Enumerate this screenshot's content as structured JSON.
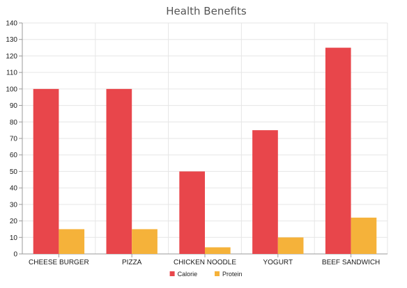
{
  "chart_data": {
    "type": "bar",
    "title": "Health Benefits",
    "xlabel": "",
    "ylabel": "",
    "categories": [
      "CHEESE BURGER",
      "PIZZA",
      "CHICKEN NOODLE",
      "YOGURT",
      "BEEF SANDWICH"
    ],
    "series": [
      {
        "name": "Calorie",
        "values": [
          100,
          100,
          50,
          75,
          125
        ],
        "color": "#e8464b"
      },
      {
        "name": "Protein",
        "values": [
          15,
          15,
          4,
          10,
          22
        ],
        "color": "#f5b23a"
      }
    ],
    "ylim": [
      0,
      140
    ],
    "yticks": [
      0,
      10,
      20,
      30,
      40,
      50,
      60,
      70,
      80,
      90,
      100,
      110,
      120,
      130,
      140
    ],
    "grid": true,
    "legend_position": "bottom-center"
  }
}
